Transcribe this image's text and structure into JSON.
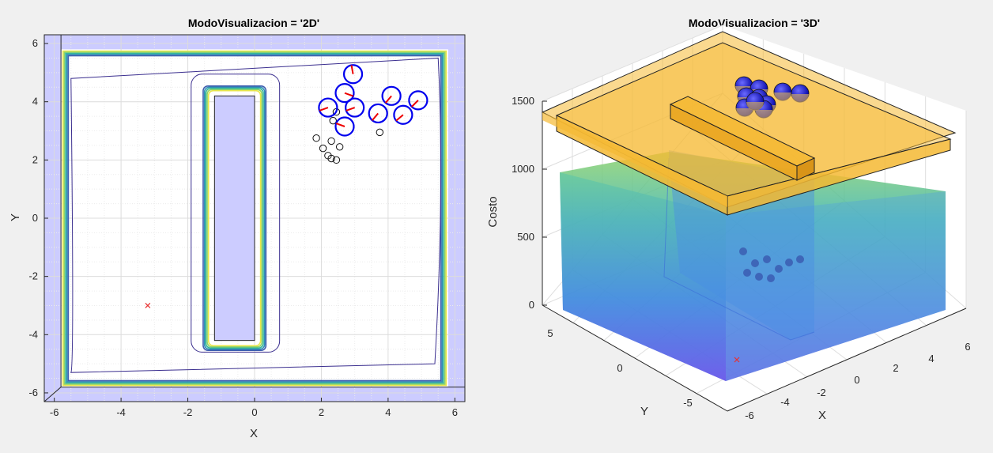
{
  "figure": {
    "background": "#f0f0f0"
  },
  "chart_data": [
    {
      "type": "scatter",
      "title": "ModoVisualizacion = '2D'",
      "xlabel": "X",
      "ylabel": "Y",
      "xlim": [
        -6.3,
        6.3
      ],
      "ylim": [
        -6.3,
        6.3
      ],
      "xticks": [
        "-6",
        "-4",
        "-2",
        "0",
        "2",
        "4",
        "6"
      ],
      "yticks": [
        "6",
        "4",
        "2",
        "0",
        "-2",
        "-4",
        "-6"
      ],
      "grid": true,
      "walls": [
        {
          "name": "outer-wall",
          "x0": -6.3,
          "x1": 6.3,
          "y0": -6.3,
          "y1": 6.3,
          "inner": [
            -5.8,
            5.8,
            -5.8,
            5.8
          ]
        },
        {
          "name": "inner-obstacle",
          "x0": -1.2,
          "x1": 0,
          "y0": -4.2,
          "y1": 4.2
        }
      ],
      "wall_fill": "#ccccff",
      "goal": {
        "x": -3.2,
        "y": -3.0,
        "color": "#e8302f"
      },
      "agents": [
        {
          "x": 2.95,
          "y": 4.95,
          "dir": 100
        },
        {
          "x": 2.7,
          "y": 4.3,
          "dir": -20
        },
        {
          "x": 2.2,
          "y": 3.8,
          "dir": 200
        },
        {
          "x": 3.0,
          "y": 3.8,
          "dir": 200
        },
        {
          "x": 2.7,
          "y": 3.15,
          "dir": 160
        },
        {
          "x": 4.1,
          "y": 4.2,
          "dir": 230
        },
        {
          "x": 4.9,
          "y": 4.05,
          "dir": 225
        },
        {
          "x": 3.7,
          "y": 3.6,
          "dir": 230
        },
        {
          "x": 4.45,
          "y": 3.55,
          "dir": 220
        }
      ],
      "agent_color": "#0000ee",
      "heading_color": "#ee0000",
      "trail": [
        {
          "x": 1.85,
          "y": 2.75
        },
        {
          "x": 2.05,
          "y": 2.4
        },
        {
          "x": 2.3,
          "y": 2.65
        },
        {
          "x": 2.55,
          "y": 2.45
        },
        {
          "x": 2.2,
          "y": 2.15
        },
        {
          "x": 2.3,
          "y": 2.05
        },
        {
          "x": 2.45,
          "y": 2.0
        },
        {
          "x": 3.75,
          "y": 2.95
        },
        {
          "x": 2.35,
          "y": 3.35
        },
        {
          "x": 2.45,
          "y": 3.65
        }
      ],
      "contour_colors": [
        "#e8e64a",
        "#8fd36a",
        "#35b79a",
        "#2e8fb5",
        "#3f5fb0",
        "#3b2f8f"
      ]
    },
    {
      "type": "surface",
      "title": "ModoVisualizacion = '3D'",
      "xlabel": "X",
      "ylabel": "Y",
      "zlabel": "Costo",
      "zlim": [
        0,
        1500
      ],
      "zticks": [
        "0",
        "500",
        "1000",
        "1500"
      ],
      "xticks": [
        "-6",
        "-4",
        "-2",
        "0",
        "2",
        "4",
        "6"
      ],
      "yticks": [
        "5",
        "0",
        "-5"
      ],
      "grid": true,
      "wall_color": "#f5b933",
      "surface_top_colors": [
        "#4ec5a0",
        "#8fd36a",
        "#3fb5b0"
      ],
      "surface_bottom_color": "#6a5aea",
      "goal_marker": "x",
      "sphere_color": "#1e1ed8"
    }
  ]
}
